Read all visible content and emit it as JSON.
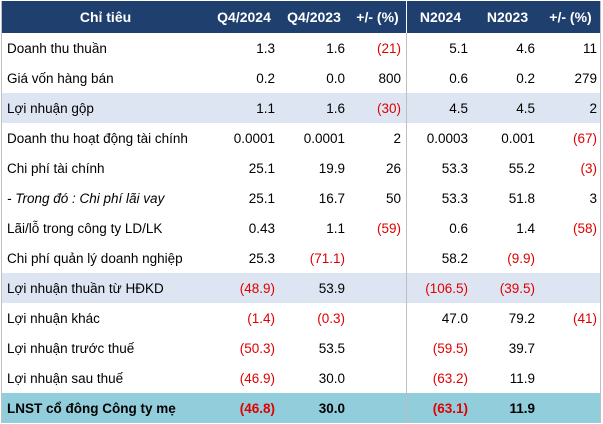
{
  "headers": [
    "Chỉ tiêu",
    "Q4/2024",
    "Q4/2023",
    "+/- (%)",
    "N2024",
    "N2023",
    "+/- (%)"
  ],
  "rows": [
    {
      "label": "Doanh thu thuần",
      "q4_2024": "1.3",
      "q4_2023": "1.6",
      "chg_q": "(21)",
      "n2024": "5.1",
      "n2023": "4.6",
      "chg_n": "11"
    },
    {
      "label": "Giá vốn hàng bán",
      "q4_2024": "0.2",
      "q4_2023": "0.0",
      "chg_q": "800",
      "n2024": "0.6",
      "n2023": "0.2",
      "chg_n": "279"
    },
    {
      "label": "Lợi nhuận gộp",
      "q4_2024": "1.1",
      "q4_2023": "1.6",
      "chg_q": "(30)",
      "n2024": "4.5",
      "n2023": "4.5",
      "chg_n": "2"
    },
    {
      "label": "Doanh thu hoạt động tài chính",
      "q4_2024": "0.0001",
      "q4_2023": "0.0001",
      "chg_q": "2",
      "n2024": "0.0003",
      "n2023": "0.001",
      "chg_n": "(67)"
    },
    {
      "label": "Chi phí tài chính",
      "q4_2024": "25.1",
      "q4_2023": "19.9",
      "chg_q": "26",
      "n2024": "53.3",
      "n2023": "55.2",
      "chg_n": "(3)"
    },
    {
      "label": "- Trong đó : Chi phí lãi vay",
      "q4_2024": "25.1",
      "q4_2023": "16.7",
      "chg_q": "50",
      "n2024": "53.3",
      "n2023": "51.8",
      "chg_n": "3"
    },
    {
      "label": "Lãi/lỗ trong công ty LD/LK",
      "q4_2024": "0.43",
      "q4_2023": "1.1",
      "chg_q": "(59)",
      "n2024": "0.6",
      "n2023": "1.4",
      "chg_n": "(58)"
    },
    {
      "label": "Chi phí quản lý doanh nghiệp",
      "q4_2024": "25.3",
      "q4_2023": "(71.1)",
      "chg_q": "",
      "n2024": "58.2",
      "n2023": "(9.9)",
      "chg_n": ""
    },
    {
      "label": "Lợi nhuận thuần từ HĐKD",
      "q4_2024": "(48.9)",
      "q4_2023": "53.9",
      "chg_q": "",
      "n2024": "(106.5)",
      "n2023": "(39.5)",
      "chg_n": ""
    },
    {
      "label": "Lợi nhuận khác",
      "q4_2024": "(1.4)",
      "q4_2023": "(0.3)",
      "chg_q": "",
      "n2024": "47.0",
      "n2023": "79.2",
      "chg_n": "(41)"
    },
    {
      "label": "Lợi nhuận trước thuế",
      "q4_2024": "(50.3)",
      "q4_2023": "53.5",
      "chg_q": "",
      "n2024": "(59.5)",
      "n2023": "39.7",
      "chg_n": ""
    },
    {
      "label": "Lợi nhuận sau thuế",
      "q4_2024": "(46.9)",
      "q4_2023": "30.0",
      "chg_q": "",
      "n2024": "(63.2)",
      "n2023": "11.9",
      "chg_n": ""
    },
    {
      "label": "LNST cổ đông Công ty mẹ",
      "q4_2024": "(46.8)",
      "q4_2023": "30.0",
      "chg_q": "",
      "n2024": "(63.1)",
      "n2023": "11.9",
      "chg_n": ""
    }
  ],
  "colors": {
    "header_bg": "#1f3f6e",
    "band_bg": "#dde5f2",
    "total_bg": "#92cddc",
    "negative": "#e00000"
  }
}
